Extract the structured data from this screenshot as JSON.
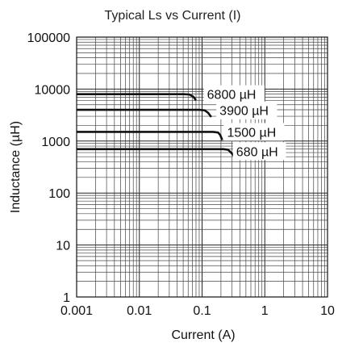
{
  "chart_data": {
    "type": "line",
    "title": "Typical Ls vs Current (I)",
    "xlabel": "Current (A)",
    "ylabel": "Inductance (µH)",
    "x_scale": "log",
    "y_scale": "log",
    "xlim": [
      0.001,
      10
    ],
    "ylim": [
      1,
      100000
    ],
    "x_ticks": [
      0.001,
      0.01,
      0.1,
      1,
      10
    ],
    "x_tick_labels": [
      "0.001",
      "0.01",
      "0.1",
      "1",
      "10"
    ],
    "y_ticks": [
      1,
      10,
      100,
      1000,
      10000,
      100000
    ],
    "y_tick_labels": [
      "1",
      "10",
      "100",
      "1000",
      "10000",
      "100000"
    ],
    "grid": true,
    "series": [
      {
        "name": "6800 µH",
        "x": [
          0.001,
          0.05,
          0.062,
          0.072,
          0.08
        ],
        "y": [
          8000,
          8000,
          7900,
          7200,
          6100
        ]
      },
      {
        "name": "3900 µH",
        "x": [
          0.001,
          0.09,
          0.11,
          0.125,
          0.14
        ],
        "y": [
          4000,
          4000,
          3900,
          3500,
          2900
        ]
      },
      {
        "name": "1500 µH",
        "x": [
          0.001,
          0.15,
          0.18,
          0.195,
          0.21
        ],
        "y": [
          1500,
          1500,
          1460,
          1300,
          1050
        ]
      },
      {
        "name": "680 µH",
        "x": [
          0.001,
          0.22,
          0.26,
          0.29,
          0.32
        ],
        "y": [
          700,
          700,
          680,
          600,
          520
        ]
      }
    ]
  }
}
